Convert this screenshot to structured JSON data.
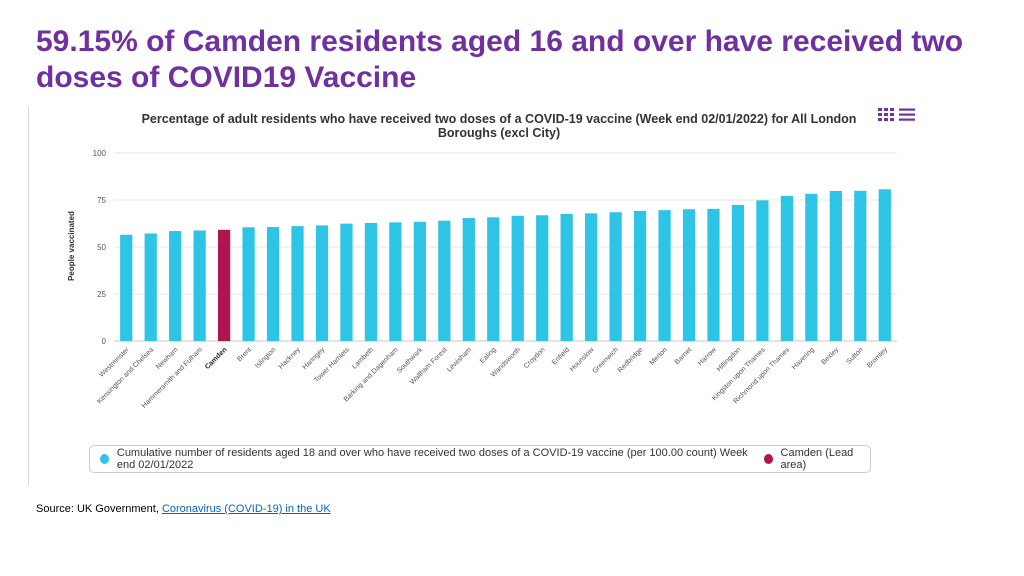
{
  "slide": {
    "title": "59.15% of Camden residents aged 16 and over have received two doses of COVID19 Vaccine",
    "source_prefix": "Source: UK Government, ",
    "source_link": "Coronavirus (COVID-19) in the UK"
  },
  "colors": {
    "title": "#7030a0",
    "bar": "#2ec4e6",
    "highlight": "#b0154f",
    "link": "#0563c1"
  },
  "menu": {
    "icon": "hamburger-menu-icon"
  },
  "chart_data": {
    "type": "bar",
    "title": "Percentage of adult residents who have received two doses of a COVID-19 vaccine (Week end 02/01/2022) for All London Boroughs (excl City)",
    "ylabel": "People vaccinated",
    "xlabel": "",
    "ylim": [
      0,
      100
    ],
    "yticks": [
      0,
      25,
      50,
      75,
      100
    ],
    "grid": true,
    "legend_position": "bottom",
    "highlight_category": "Camden",
    "categories": [
      "Westminster",
      "Kensington and Chelsea",
      "Newham",
      "Hammersmith and Fulham",
      "Camden",
      "Brent",
      "Islington",
      "Hackney",
      "Haringey",
      "Tower Hamlets",
      "Lambeth",
      "Barking and Dagenham",
      "Southwark",
      "Waltham Forest",
      "Lewisham",
      "Ealing",
      "Wandsworth",
      "Croydon",
      "Enfield",
      "Hounslow",
      "Greenwich",
      "Redbridge",
      "Merton",
      "Barnet",
      "Harrow",
      "Hillingdon",
      "Kingston upon Thames",
      "Richmond upon Thames",
      "Havering",
      "Bexley",
      "Sutton",
      "Bromley"
    ],
    "values": [
      56.5,
      57.2,
      58.5,
      58.8,
      59.15,
      60.5,
      60.6,
      61.1,
      61.5,
      62.4,
      62.8,
      63.1,
      63.4,
      64.0,
      65.4,
      65.8,
      66.6,
      66.9,
      67.6,
      67.9,
      68.5,
      69.2,
      69.6,
      70.1,
      70.3,
      72.4,
      74.8,
      77.2,
      78.3,
      79.8,
      79.9,
      80.7
    ],
    "series": [
      {
        "name": "Cumulative number of residents aged 18 and over who have received two doses of a COVID-19 vaccine (per 100.00 count) Week end 02/01/2022",
        "color": "#2ec4e6"
      },
      {
        "name": "Camden (Lead area)",
        "color": "#b0154f"
      }
    ]
  }
}
